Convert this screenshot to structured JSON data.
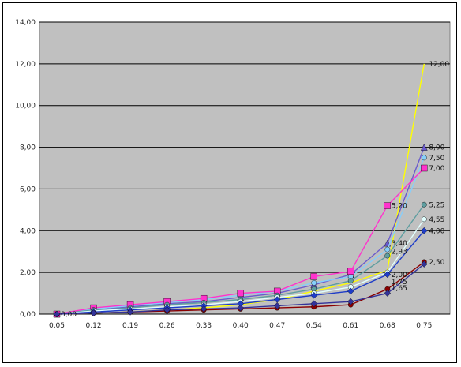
{
  "chart_data": {
    "type": "line",
    "title": "",
    "xlabel": "",
    "ylabel": "",
    "categories": [
      "0,05",
      "0,12",
      "0,19",
      "0,26",
      "0,33",
      "0,40",
      "0,47",
      "0,54",
      "0,61",
      "0,68",
      "0,75"
    ],
    "ylim": [
      0,
      14
    ],
    "yticks": [
      "0,00",
      "2,00",
      "4,00",
      "6,00",
      "8,00",
      "10,00",
      "12,00",
      "14,00"
    ],
    "grid": true,
    "legend": "none",
    "plot_background": "#c0c0c0",
    "series": [
      {
        "color": "#ffff00",
        "marker": "none",
        "values": [
          0,
          0.05,
          0.1,
          0.2,
          0.3,
          0.45,
          0.7,
          1.1,
          1.5,
          2.1,
          12.0
        ],
        "end_label": "12,00"
      },
      {
        "color": "#6a5acd",
        "marker": "triangle",
        "values": [
          0,
          0.2,
          0.35,
          0.5,
          0.6,
          0.8,
          1.0,
          1.4,
          1.9,
          3.4,
          8.0
        ],
        "end_label": "8,00"
      },
      {
        "color": "#87cefa",
        "marker": "circle",
        "values": [
          0,
          0.25,
          0.4,
          0.55,
          0.7,
          0.9,
          1.1,
          1.5,
          1.8,
          3.1,
          7.5
        ],
        "end_label": "7,50"
      },
      {
        "color": "#ff33cc",
        "marker": "square",
        "values": [
          0,
          0.3,
          0.45,
          0.6,
          0.75,
          1.0,
          1.1,
          1.8,
          2.05,
          5.2,
          7.0
        ],
        "end_label": "7,00"
      },
      {
        "color": "#5f9ea0",
        "marker": "circle",
        "values": [
          0,
          0.2,
          0.3,
          0.45,
          0.55,
          0.7,
          0.9,
          1.2,
          1.6,
          2.8,
          5.25
        ],
        "end_label": "5,25"
      },
      {
        "color": "#e0ffff",
        "marker": "circle",
        "values": [
          0,
          0.15,
          0.25,
          0.35,
          0.45,
          0.6,
          0.8,
          1.0,
          1.3,
          2.0,
          4.55
        ],
        "end_label": "4,55"
      },
      {
        "color": "#1e3cc8",
        "marker": "diamond",
        "values": [
          0,
          0.1,
          0.2,
          0.3,
          0.4,
          0.5,
          0.7,
          0.9,
          1.1,
          1.9,
          4.0
        ],
        "end_label": "4,00"
      },
      {
        "color": "#8b0000",
        "marker": "circle",
        "values": [
          0,
          0.05,
          0.1,
          0.15,
          0.2,
          0.25,
          0.3,
          0.35,
          0.45,
          1.2,
          2.5
        ],
        "end_label": "2,50"
      },
      {
        "color": "#333399",
        "marker": "diamond",
        "values": [
          0,
          0.05,
          0.1,
          0.2,
          0.25,
          0.3,
          0.4,
          0.5,
          0.6,
          1.0,
          2.4
        ],
        "end_label": ""
      }
    ],
    "extra_labels": [
      {
        "category": "0,68",
        "y": 5.2,
        "label": "5,20"
      },
      {
        "category": "0,68",
        "y": 3.4,
        "label": "3,40"
      },
      {
        "category": "0,68",
        "y": 3.0,
        "label": "2,93"
      },
      {
        "category": "0,68",
        "y": 1.9,
        "label": "2,00"
      },
      {
        "category": "0,68",
        "y": 1.55,
        "label": "1,75"
      },
      {
        "category": "0,68",
        "y": 1.25,
        "label": "1,65"
      },
      {
        "category": "0,05",
        "y": 0,
        "label": "0,00"
      }
    ]
  }
}
